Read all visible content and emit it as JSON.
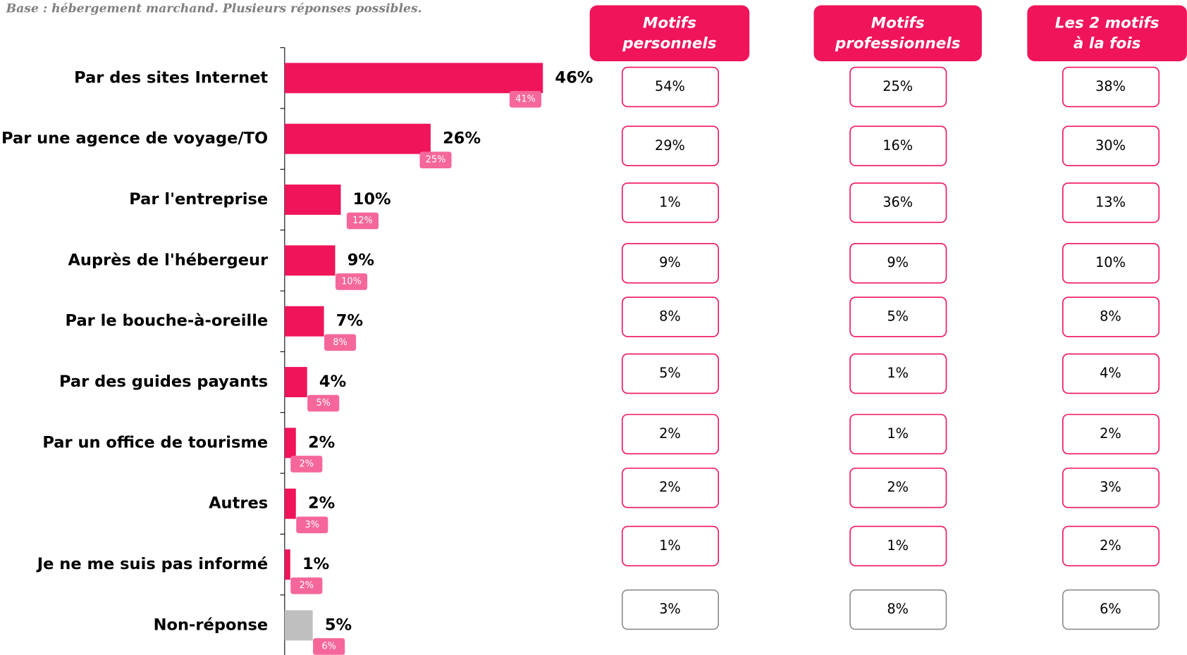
{
  "chart_data": {
    "type": "bar",
    "subtitle": "Base : hébergement marchand. Plusieurs réponses possibles.",
    "categories": [
      "Par des sites Internet",
      "Par une agence de voyage/TO",
      "Par l'entreprise",
      "Auprès de l'hébergeur",
      "Par le bouche-à-oreille",
      "Par des guides payants",
      "Par un office de tourisme",
      "Autres",
      "Je ne me suis pas informé",
      "Non-réponse"
    ],
    "series": [
      {
        "color": "#f0145a",
        "last_color": "#bfbfbf",
        "values": [
          46,
          26,
          10,
          9,
          7,
          4,
          2,
          2,
          1,
          5
        ],
        "value_labels": [
          "46%",
          "26%",
          "10%",
          "9%",
          "7%",
          "4%",
          "2%",
          "2%",
          "1%",
          "5%"
        ]
      },
      {
        "color": "#f5679b",
        "values": [
          41,
          25,
          12,
          10,
          8,
          5,
          2,
          3,
          2,
          6
        ],
        "value_labels": [
          "41%",
          "25%",
          "12%",
          "10%",
          "8%",
          "5%",
          "2%",
          "3%",
          "2%",
          "6%"
        ]
      }
    ],
    "xlim": [
      0,
      60
    ],
    "table": [
      {
        "header": [
          "Motifs",
          "personnels"
        ],
        "values": [
          "54%",
          "29%",
          "1%",
          "9%",
          "8%",
          "5%",
          "2%",
          "2%",
          "1%",
          "3%"
        ]
      },
      {
        "header": [
          "Motifs",
          "professionnels"
        ],
        "values": [
          "25%",
          "16%",
          "36%",
          "9%",
          "5%",
          "1%",
          "1%",
          "2%",
          "1%",
          "8%"
        ]
      },
      {
        "header": [
          "Les 2 motifs",
          "à la fois"
        ],
        "values": [
          "38%",
          "30%",
          "13%",
          "10%",
          "8%",
          "4%",
          "2%",
          "3%",
          "2%",
          "6%"
        ]
      }
    ]
  }
}
